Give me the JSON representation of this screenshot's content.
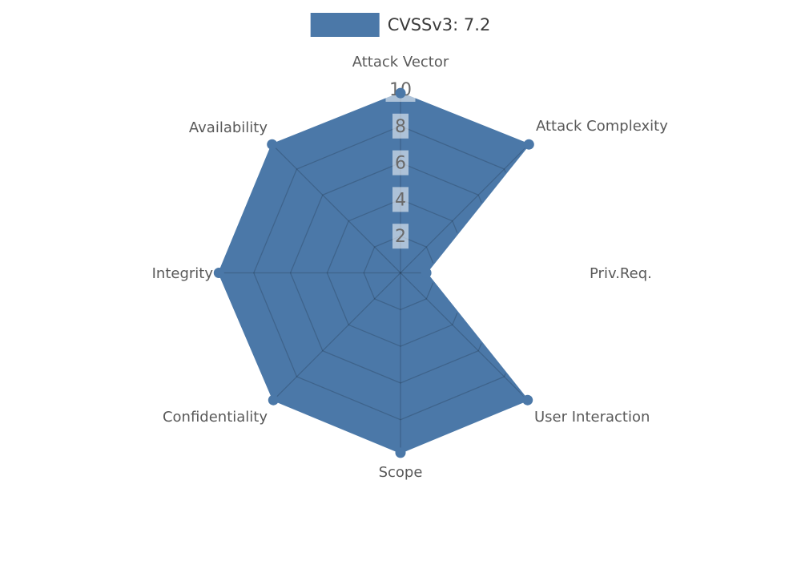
{
  "chart_data": {
    "type": "radar",
    "title": "",
    "legend": "CVSSv3: 7.2",
    "score_label": "CVSSv3",
    "score_value": "7.2",
    "axes": [
      "Attack Vector",
      "Attack Complexity",
      "Priv.Req.",
      "User Interaction",
      "Scope",
      "Confidentiality",
      "Integrity",
      "Availability"
    ],
    "series": [
      {
        "name": "CVSSv3: 7.2",
        "values": [
          9.8,
          9.9,
          1.4,
          9.8,
          9.8,
          9.8,
          9.9,
          9.9
        ]
      }
    ],
    "ticks": [
      2,
      4,
      6,
      8,
      10
    ],
    "axis_range": [
      0,
      10
    ],
    "grid": true,
    "legend_position": "top-center",
    "colors": {
      "series_fill": "#4b78a8",
      "series_border": "#4b78a8",
      "point": "#4b78a8",
      "grid_line_on_fill": "rgba(0,0,0,0.17)",
      "tick_text": "#6a6a6a",
      "tick_box": "rgba(255,255,255,0.55)",
      "axis_label_text": "#595959",
      "legend_text": "#3b3b3b",
      "background": "#ffffff"
    }
  }
}
